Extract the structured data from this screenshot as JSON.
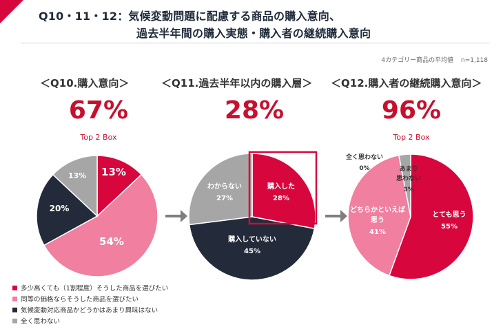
{
  "header": {
    "line1": "Q10・11・12：気候変動問題に配慮する商品の購入意向、",
    "line2": "過去半年間の購入実態・購入者の継続購入意向",
    "note_text": "4カテゴリー商品の平均値",
    "note_n": "n=1,118"
  },
  "colors": {
    "accent": "#d7063c",
    "red": "#d7063c",
    "pink": "#f07fa0",
    "navy": "#232b3a",
    "gray": "#a6a6a6"
  },
  "chart_data": [
    {
      "type": "pie",
      "title": "＜Q10.購入意向＞",
      "headline": "67%",
      "sub": "Top 2 Box",
      "slices": [
        {
          "label": "多少高くても（1割程度）そうした商品を選びたい",
          "value": 13,
          "text": "13%",
          "color": "#d7063c",
          "text_color": "#ffffff"
        },
        {
          "label": "同等の価格ならそうした商品を選びたい",
          "value": 54,
          "text": "54%",
          "color": "#f07fa0",
          "text_color": "#ffffff"
        },
        {
          "label": "気候変動対応商品かどうかはあまり興味はない",
          "value": 20,
          "text": "20%",
          "color": "#232b3a",
          "text_color": "#ffffff"
        },
        {
          "label": "全く思わない",
          "value": 13,
          "text": "13%",
          "color": "#a6a6a6",
          "text_color": "#ffffff"
        }
      ]
    },
    {
      "type": "pie",
      "title": "＜Q11.過去半年以内の購入層＞",
      "headline": "28%",
      "sub": "",
      "slices": [
        {
          "label": "購入した",
          "value": 28,
          "text": "28%",
          "color": "#d7063c",
          "text_color": "#ffffff"
        },
        {
          "label": "購入していない",
          "value": 45,
          "text": "45%",
          "color": "#232b3a",
          "text_color": "#ffffff"
        },
        {
          "label": "わからない",
          "value": 27,
          "text": "27%",
          "color": "#a6a6a6",
          "text_color": "#ffffff"
        }
      ]
    },
    {
      "type": "pie",
      "title": "＜Q12.購入者の継続購入意向＞",
      "headline": "96%",
      "sub": "Top 2 Box",
      "slices": [
        {
          "label": "とても思う",
          "value": 55,
          "text": "55%",
          "color": "#d7063c",
          "text_color": "#ffffff"
        },
        {
          "label": "どちらかといえば思う",
          "value": 41,
          "text": "41%",
          "color": "#f07fa0",
          "text_color": "#ffffff"
        },
        {
          "label": "全く思わない",
          "value": 0,
          "text": "0%",
          "color": "#232b3a",
          "text_color": "#333333"
        },
        {
          "label": "あまり思わない",
          "value": 3,
          "text": "3%",
          "color": "#a6a6a6",
          "text_color": "#333333"
        }
      ]
    }
  ],
  "legend": [
    {
      "label": "多少高くても（1割程度）そうした商品を選びたい",
      "color": "#d7063c"
    },
    {
      "label": "同等の価格ならそうした商品を選びたい",
      "color": "#f07fa0"
    },
    {
      "label": "気候変動対応商品かどうかはあまり興味はない",
      "color": "#232b3a"
    },
    {
      "label": "全く思わない",
      "color": "#a6a6a6"
    }
  ]
}
